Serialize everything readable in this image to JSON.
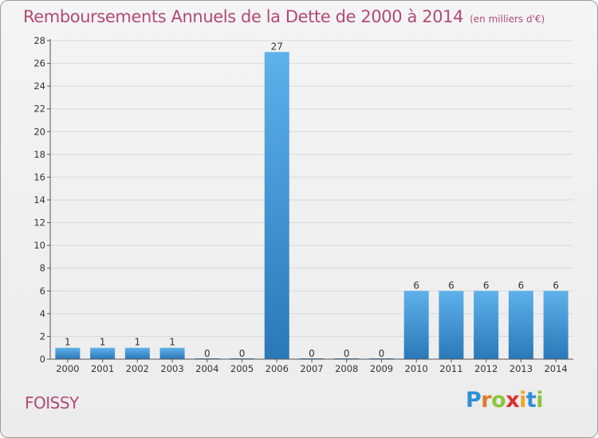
{
  "title": "Remboursements Annuels de la Dette de 2000 à 2014",
  "unit": "(en milliers d'€)",
  "place": "FOISSY",
  "logo": {
    "text": "Proxiti",
    "letters": [
      {
        "char": "P",
        "color": "#2f8fd8"
      },
      {
        "char": "r",
        "color": "#e07a2a"
      },
      {
        "char": "o",
        "color": "#8cc63f"
      },
      {
        "char": "x",
        "color": "#d9302f"
      },
      {
        "char": "i",
        "color": "#f0a524"
      },
      {
        "char": "t",
        "color": "#2f8fd8"
      },
      {
        "char": "i",
        "color": "#8cc63f"
      }
    ]
  },
  "colors": {
    "title": "#b14a78",
    "bar_top": "#5eb1ea",
    "bar_bottom": "#2a78b8",
    "axis_text": "#333333",
    "grid": "#d8d8d8"
  },
  "chart_data": {
    "type": "bar",
    "categories": [
      "2000",
      "2001",
      "2002",
      "2003",
      "2004",
      "2005",
      "2006",
      "2007",
      "2008",
      "2009",
      "2010",
      "2011",
      "2012",
      "2013",
      "2014"
    ],
    "values": [
      1,
      1,
      1,
      1,
      0,
      0,
      27,
      0,
      0,
      0,
      6,
      6,
      6,
      6,
      6
    ],
    "title": "Remboursements Annuels de la Dette de 2000 à 2014",
    "xlabel": "",
    "ylabel": "",
    "ylim": [
      0,
      28
    ],
    "yticks": [
      0,
      2,
      4,
      6,
      8,
      10,
      12,
      14,
      16,
      18,
      20,
      22,
      24,
      26,
      28
    ],
    "grid": true,
    "legend": "none"
  }
}
